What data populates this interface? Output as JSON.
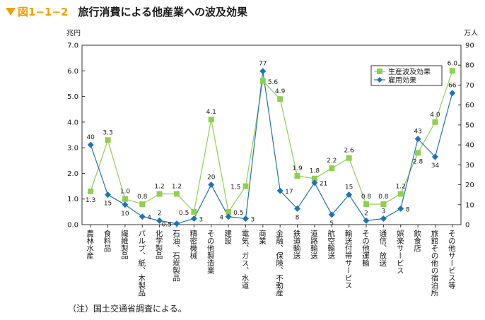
{
  "header": {
    "figure_number": "図1−1−2",
    "title": "旅行消費による他産業への波及効果"
  },
  "note": "（注）国土交通省調査による。",
  "colors": {
    "accent": "#f2a000",
    "production": "#8ed050",
    "employment": "#1f74b8",
    "axis": "#333333"
  },
  "chart_data": {
    "type": "line",
    "categories": [
      "農林水産",
      "食料品",
      "繊維製品",
      "パルプ、紙、木製品",
      "化学製品",
      "石油、石炭製品",
      "精密機械",
      "その他製造業",
      "建設",
      "電気、ガス、水道",
      "商業",
      "金融、保険、不動産",
      "鉄道輸送",
      "道路輸送",
      "航空輸送",
      "輸送付帯サービス",
      "その他運輸",
      "通信、放送",
      "娯楽サービス",
      "飲食店",
      "旅館その他の宿泊所",
      "その他サービス等"
    ],
    "y_left": {
      "unit": "兆円",
      "min": 0,
      "max": 7,
      "ticks": [
        "0.0",
        "1.0",
        "2.0",
        "3.0",
        "4.0",
        "5.0",
        "6.0",
        "7.0"
      ]
    },
    "y_right": {
      "unit": "万人",
      "min": 0,
      "max": 90,
      "ticks": [
        "0",
        "10",
        "20",
        "30",
        "40",
        "50",
        "60",
        "70",
        "80",
        "90"
      ]
    },
    "legend_position": "top-right",
    "series": [
      {
        "name": "生産波及効果",
        "axis": "left",
        "marker": "square",
        "values": [
          1.3,
          3.3,
          1.0,
          0.8,
          1.2,
          1.2,
          0.5,
          4.1,
          0.5,
          1.5,
          5.6,
          4.9,
          1.9,
          1.8,
          2.2,
          2.6,
          0.8,
          0.8,
          1.2,
          2.8,
          4.0,
          6.0
        ],
        "labels": [
          "1.3",
          "3.3",
          "1.0",
          "0.8",
          "1.2",
          "1.2",
          "0.5",
          "4.1",
          "0.5",
          "1.5",
          "5.6",
          "4.9",
          "1.9",
          "1.8",
          "2.2",
          "2.6",
          "0.8",
          "0.8",
          "1.2",
          "2.8",
          "4.0",
          "6.0"
        ]
      },
      {
        "name": "雇用効果",
        "axis": "right",
        "marker": "diamond",
        "values": [
          40,
          15,
          10,
          4,
          2,
          0.5,
          3,
          20,
          4,
          3,
          77,
          17,
          8,
          21,
          5,
          15,
          2,
          3,
          8,
          43,
          34,
          66
        ],
        "labels": [
          "40",
          "15",
          "10",
          "4",
          "2",
          "0.5",
          "3",
          "20",
          "4",
          "3",
          "77",
          "17",
          "8",
          "21",
          "5",
          "15",
          "2",
          "3",
          "8",
          "43",
          "34",
          "66"
        ]
      }
    ]
  }
}
